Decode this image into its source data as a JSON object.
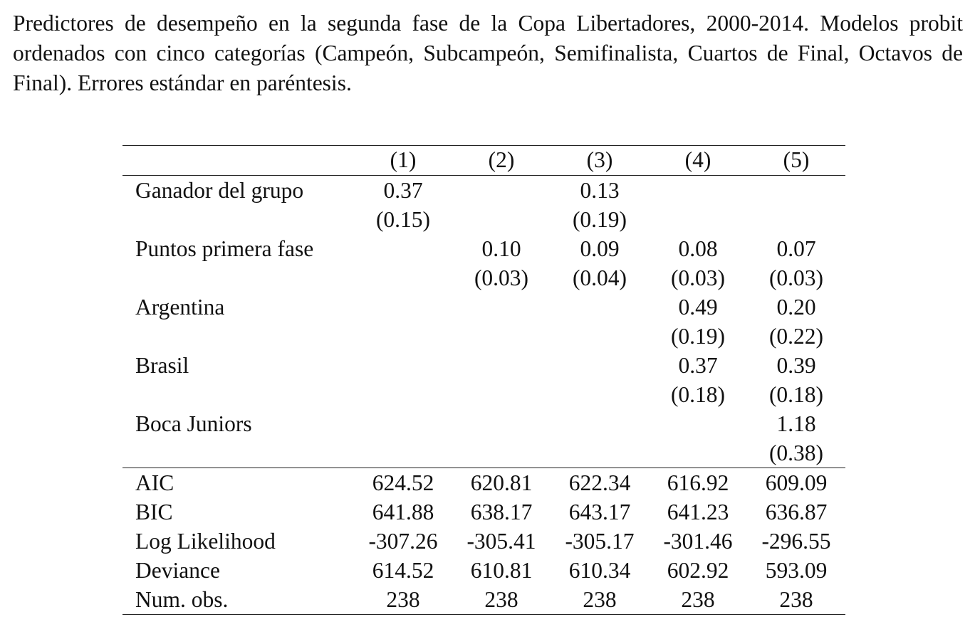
{
  "caption": "Predictores de desempeño en la segunda fase de la Copa Libertadores, 2000-2014. Modelos probit ordenados con cinco categorías (Campeón, Subcampeón, Semifinalista, Cuartos de Final, Octavos de Final). Errores estándar en paréntesis.",
  "table": {
    "columns": [
      "",
      "(1)",
      "(2)",
      "(3)",
      "(4)",
      "(5)"
    ],
    "coefficients": [
      {
        "label": "Ganador del grupo",
        "est": [
          "0.37",
          "",
          "0.13",
          "",
          ""
        ],
        "se": [
          "(0.15)",
          "",
          "(0.19)",
          "",
          ""
        ]
      },
      {
        "label": "Puntos primera fase",
        "est": [
          "",
          "0.10",
          "0.09",
          "0.08",
          "0.07"
        ],
        "se": [
          "",
          "(0.03)",
          "(0.04)",
          "(0.03)",
          "(0.03)"
        ]
      },
      {
        "label": "Argentina",
        "est": [
          "",
          "",
          "",
          "0.49",
          "0.20"
        ],
        "se": [
          "",
          "",
          "",
          "(0.19)",
          "(0.22)"
        ]
      },
      {
        "label": "Brasil",
        "est": [
          "",
          "",
          "",
          "0.37",
          "0.39"
        ],
        "se": [
          "",
          "",
          "",
          "(0.18)",
          "(0.18)"
        ]
      },
      {
        "label": "Boca Juniors",
        "est": [
          "",
          "",
          "",
          "",
          "1.18"
        ],
        "se": [
          "",
          "",
          "",
          "",
          "(0.38)"
        ]
      }
    ],
    "gof": [
      {
        "label": "AIC",
        "values": [
          "624.52",
          "620.81",
          "622.34",
          "616.92",
          "609.09"
        ]
      },
      {
        "label": "BIC",
        "values": [
          "641.88",
          "638.17",
          "643.17",
          "641.23",
          "636.87"
        ]
      },
      {
        "label": "Log Likelihood",
        "values": [
          "-307.26",
          "-305.41",
          "-305.17",
          "-301.46",
          "-296.55"
        ]
      },
      {
        "label": "Deviance",
        "values": [
          "614.52",
          "610.81",
          "610.34",
          "602.92",
          "593.09"
        ]
      },
      {
        "label": "Num. obs.",
        "values": [
          "238",
          "238",
          "238",
          "238",
          "238"
        ]
      }
    ]
  }
}
